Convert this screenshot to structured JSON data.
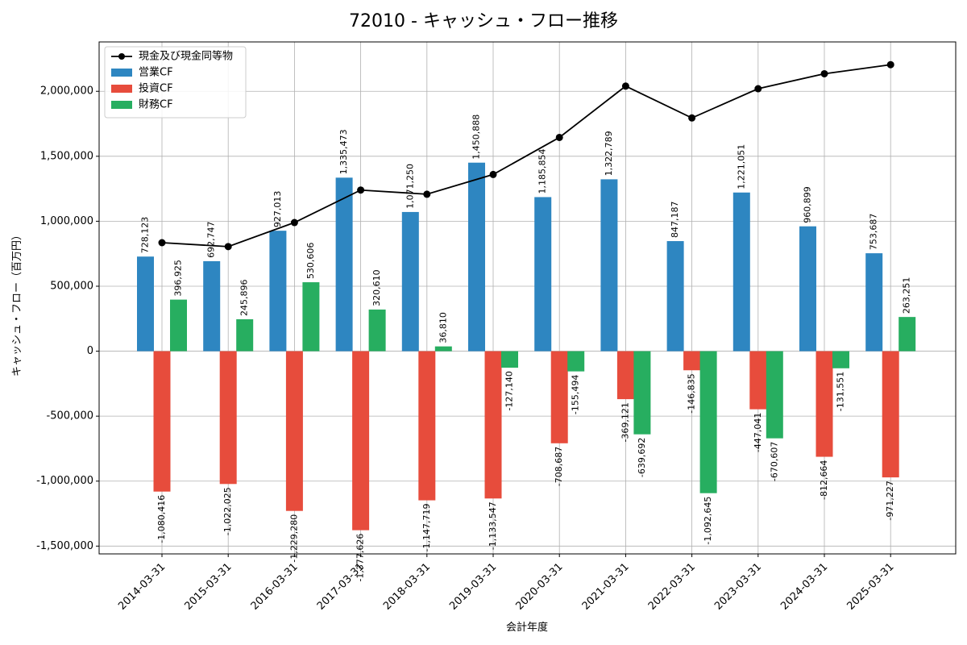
{
  "chart_data": {
    "type": "bar+line",
    "title": "72010 - キャッシュ・フロー推移",
    "xlabel": "会計年度",
    "ylabel": "キャッシュ・フロー（百万円）",
    "ylim": [
      -1560000,
      2380000
    ],
    "yticks": [
      -1500000,
      -1000000,
      -500000,
      0,
      500000,
      1000000,
      1500000,
      2000000
    ],
    "ytick_labels": [
      "-1,500,000",
      "-1,000,000",
      "-500,000",
      "0",
      "500,000",
      "1,000,000",
      "1,500,000",
      "2,000,000"
    ],
    "grid": true,
    "legend_position": "top-left",
    "categories": [
      "2014-03-31",
      "2015-03-31",
      "2016-03-31",
      "2017-03-31",
      "2018-03-31",
      "2019-03-31",
      "2020-03-31",
      "2021-03-31",
      "2022-03-31",
      "2023-03-31",
      "2024-03-31",
      "2025-03-31"
    ],
    "series": [
      {
        "name": "営業CF",
        "kind": "bar",
        "color": "#2e86c1",
        "values": [
          728123,
          692747,
          927013,
          1335473,
          1071250,
          1450888,
          1185854,
          1322789,
          847187,
          1221051,
          960899,
          753687
        ],
        "labels": [
          "728,123",
          "692,747",
          "927,013",
          "1,335,473",
          "1,071,250",
          "1,450,888",
          "1,185,854",
          "1,322,789",
          "847,187",
          "1,221,051",
          "960,899",
          "753,687"
        ]
      },
      {
        "name": "投資CF",
        "kind": "bar",
        "color": "#e74c3c",
        "values": [
          -1080416,
          -1022025,
          -1229280,
          -1377626,
          -1147719,
          -1133547,
          -708687,
          -369121,
          -146835,
          -447041,
          -812664,
          -971227
        ],
        "labels": [
          "-1,080,416",
          "-1,022,025",
          "-1,229,280",
          "-1,377,626",
          "-1,147,719",
          "-1,133,547",
          "-708,687",
          "-369,121",
          "-146,835",
          "-447,041",
          "-812,664",
          "-971,227"
        ]
      },
      {
        "name": "財務CF",
        "kind": "bar",
        "color": "#27ae60",
        "values": [
          396925,
          245896,
          530606,
          320610,
          36810,
          -127140,
          -155494,
          -639692,
          -1092645,
          -670607,
          -131551,
          263251
        ],
        "labels": [
          "396,925",
          "245,896",
          "530,606",
          "320,610",
          "36,810",
          "-127,140",
          "-155,494",
          "-639,692",
          "-1,092,645",
          "-670,607",
          "-131,551",
          "263,251"
        ]
      },
      {
        "name": "現金及び現金同等物",
        "kind": "line",
        "color": "#000000",
        "values": [
          835000,
          805000,
          990000,
          1240000,
          1208000,
          1360000,
          1645000,
          2040000,
          1795000,
          2020000,
          2135000,
          2205000
        ]
      }
    ]
  }
}
